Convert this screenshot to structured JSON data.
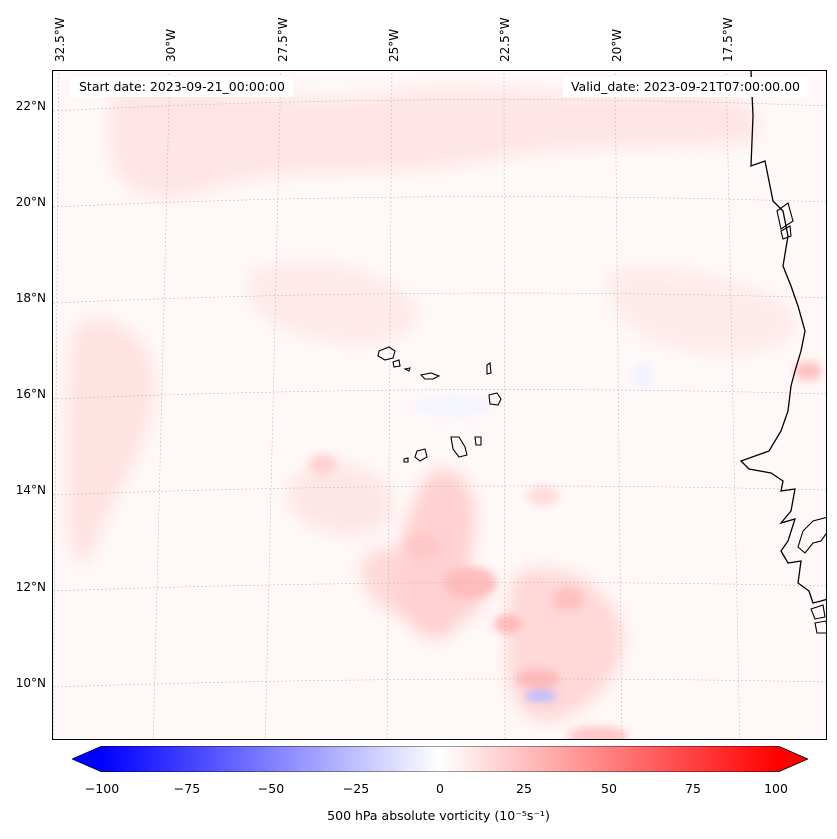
{
  "header": {
    "start_date": "Start date: 2023-09-21_00:00:00",
    "valid_date": "Valid_date: 2023-09-21T07:00:00.00"
  },
  "axes": {
    "lon_labels": [
      "32.5°W",
      "30°W",
      "27.5°W",
      "25°W",
      "22.5°W",
      "20°W",
      "17.5°W"
    ],
    "lat_labels": [
      "22°N",
      "20°N",
      "18°N",
      "16°N",
      "14°N",
      "12°N",
      "10°N"
    ]
  },
  "colorbar": {
    "ticks": [
      "−100",
      "−75",
      "−50",
      "−25",
      "0",
      "25",
      "50",
      "75",
      "100"
    ],
    "label": "500 hPa absolute vorticity (10⁻⁵s⁻¹)",
    "min": -100,
    "max": 100,
    "low_color": "#0000ff",
    "mid_color": "#ffffff",
    "high_color": "#ff0000"
  },
  "map": {
    "field": "500 hPa absolute vorticity",
    "region": "Cape Verde / West African coast"
  }
}
